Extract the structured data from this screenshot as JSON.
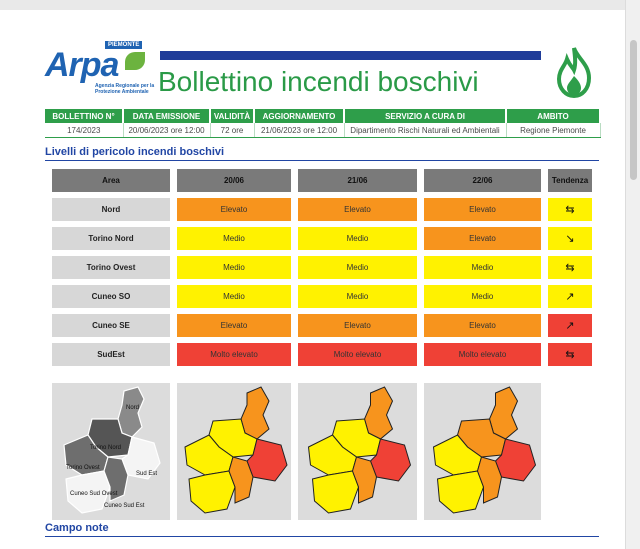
{
  "header": {
    "logo": {
      "text": "Arpa",
      "badge": "PIEMONTE",
      "subtitle": "Agenzia Regionale per la Protezione Ambientale"
    },
    "title": "Bollettino incendi boschivi",
    "icon": "fire-icon"
  },
  "info_table": {
    "headers": [
      "BOLLETTINO N°",
      "DATA EMISSIONE",
      "VALIDITÀ",
      "AGGIORNAMENTO",
      "SERVIZIO A CURA DI",
      "AMBITO"
    ],
    "values": [
      "174/2023",
      "20/06/2023 ore 12:00",
      "72 ore",
      "21/06/2023 ore 12:00",
      "Dipartimento Rischi Naturali ed Ambientali",
      "Regione Piemonte"
    ]
  },
  "section_levels": "Livelli di pericolo incendi boschivi",
  "levels_table": {
    "headers": {
      "area": "Area",
      "days": [
        "20/06",
        "21/06",
        "22/06"
      ],
      "trend": "Tendenza"
    },
    "rows": [
      {
        "area": "Nord",
        "levels": [
          "Elevato",
          "Elevato",
          "Elevato"
        ],
        "colors": [
          "#f7941d",
          "#f7941d",
          "#f7941d"
        ],
        "trend_icon": "stable-arrows-icon",
        "trend_symbol": "⇆",
        "trend_color": "#fff200"
      },
      {
        "area": "Torino Nord",
        "levels": [
          "Medio",
          "Medio",
          "Elevato"
        ],
        "colors": [
          "#fff200",
          "#fff200",
          "#f7941d"
        ],
        "trend_icon": "arrow-down-right-icon",
        "trend_symbol": "↘",
        "trend_color": "#fff200"
      },
      {
        "area": "Torino Ovest",
        "levels": [
          "Medio",
          "Medio",
          "Medio"
        ],
        "colors": [
          "#fff200",
          "#fff200",
          "#fff200"
        ],
        "trend_icon": "stable-arrows-icon",
        "trend_symbol": "⇆",
        "trend_color": "#fff200"
      },
      {
        "area": "Cuneo SO",
        "levels": [
          "Medio",
          "Medio",
          "Medio"
        ],
        "colors": [
          "#fff200",
          "#fff200",
          "#fff200"
        ],
        "trend_icon": "arrow-up-right-icon",
        "trend_symbol": "↗",
        "trend_color": "#fff200"
      },
      {
        "area": "Cuneo SE",
        "levels": [
          "Elevato",
          "Elevato",
          "Elevato"
        ],
        "colors": [
          "#f7941d",
          "#f7941d",
          "#f7941d"
        ],
        "trend_icon": "arrow-up-right-icon",
        "trend_symbol": "↗",
        "trend_color": "#ef4136"
      },
      {
        "area": "SudEst",
        "levels": [
          "Molto elevato",
          "Molto elevato",
          "Molto elevato"
        ],
        "colors": [
          "#ef4136",
          "#ef4136",
          "#ef4136"
        ],
        "trend_icon": "stable-arrows-icon",
        "trend_symbol": "⇆",
        "trend_color": "#ef4136"
      }
    ]
  },
  "reference_map": {
    "labels": [
      "Nord",
      "Torino Nord",
      "Torino Ovest",
      "Sud Est",
      "Cuneo Sud Ovest",
      "Cuneo Sud Est"
    ]
  },
  "day_maps": [
    {
      "zones": {
        "nord": "#f7941d",
        "torino_nord": "#fff200",
        "torino_ovest": "#fff200",
        "cuneo_so": "#fff200",
        "cuneo_se": "#f7941d",
        "sudest": "#ef4136"
      }
    },
    {
      "zones": {
        "nord": "#f7941d",
        "torino_nord": "#fff200",
        "torino_ovest": "#fff200",
        "cuneo_so": "#fff200",
        "cuneo_se": "#f7941d",
        "sudest": "#ef4136"
      }
    },
    {
      "zones": {
        "nord": "#f7941d",
        "torino_nord": "#f7941d",
        "torino_ovest": "#fff200",
        "cuneo_so": "#fff200",
        "cuneo_se": "#f7941d",
        "sudest": "#ef4136"
      }
    }
  ],
  "section_notes": "Campo note"
}
